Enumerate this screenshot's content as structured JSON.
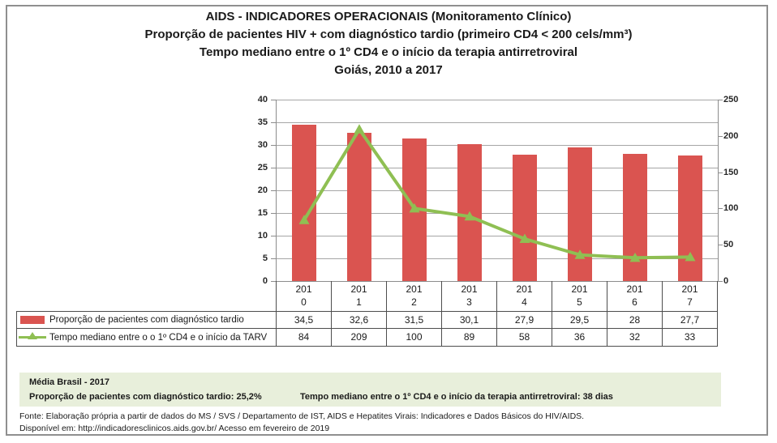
{
  "title": {
    "line1": "AIDS - INDICADORES OPERACIONAIS (Monitoramento Clínico)",
    "line2": "Proporção de pacientes HIV + com diagnóstico tardio (primeiro CD4 < 200 cels/mm³)",
    "line3": "Tempo mediano entre o 1º CD4 e o início da terapia antirretroviral",
    "line4": "Goiás, 2010 a 2017"
  },
  "chart_data": {
    "type": "bar",
    "subtype": "bar+line combo, dual axis",
    "categories": [
      "2010",
      "2011",
      "2012",
      "2013",
      "2014",
      "2015",
      "2016",
      "2017"
    ],
    "series": [
      {
        "name": "Proporção de pacientes com diagnóstico tardio",
        "type": "bar",
        "axis": "left",
        "values": [
          34.5,
          32.6,
          31.5,
          30.1,
          27.9,
          29.5,
          28,
          27.7
        ],
        "color": "#da5450"
      },
      {
        "name": "Tempo mediano entre o o 1º CD4 e o início da TARV",
        "type": "line",
        "axis": "right",
        "marker": "triangle",
        "values": [
          84,
          209,
          100,
          89,
          58,
          36,
          32,
          33
        ],
        "color": "#8fbf53"
      }
    ],
    "left_axis": {
      "min": 0,
      "max": 40,
      "step": 5,
      "ticks": [
        "0",
        "5",
        "10",
        "15",
        "20",
        "25",
        "30",
        "35",
        "40"
      ]
    },
    "right_axis": {
      "min": 0,
      "max": 250,
      "step": 50,
      "ticks": [
        "0",
        "50",
        "100",
        "150",
        "200",
        "250"
      ]
    },
    "grid": true,
    "legend_position": "table-bottom"
  },
  "table": {
    "rows": [
      {
        "label": "Proporção de pacientes com diagnóstico tardio",
        "swatch": "red-bar-swatch",
        "values_display": [
          "34,5",
          "32,6",
          "31,5",
          "30,1",
          "27,9",
          "29,5",
          "28",
          "27,7"
        ]
      },
      {
        "label": "Tempo mediano entre o o 1º CD4 e o início da TARV",
        "swatch": "green-line-triangle-swatch",
        "values_display": [
          "84",
          "209",
          "100",
          "89",
          "58",
          "36",
          "32",
          "33"
        ]
      }
    ]
  },
  "media_brasil": {
    "title": "Média Brasil - 2017",
    "left_stat": "Proporção de pacientes com diagnóstico tardio: 25,2%",
    "right_stat": "Tempo mediano entre o 1º CD4 e o início da terapia antirretroviral: 38 dias",
    "background": "#e8efdb"
  },
  "fonte": {
    "line1": "Fonte: Elaboração própria a partir de dados do MS / SVS / Departamento de IST, AIDS e Hepatites Virais: Indicadores e Dados Básicos do HIV/AIDS.",
    "line2": "Disponível em: http://indicadoresclinicos.aids.gov.br/ Acesso em fevereiro de 2019"
  },
  "colors": {
    "bar": "#da5450",
    "line": "#8fbf53",
    "media_box_bg": "#e8efdb",
    "grid": "#a6a6a6",
    "axis": "#8c8c8c",
    "table_border": "#4d4d4d",
    "frame_border": "#8f8f8f"
  }
}
